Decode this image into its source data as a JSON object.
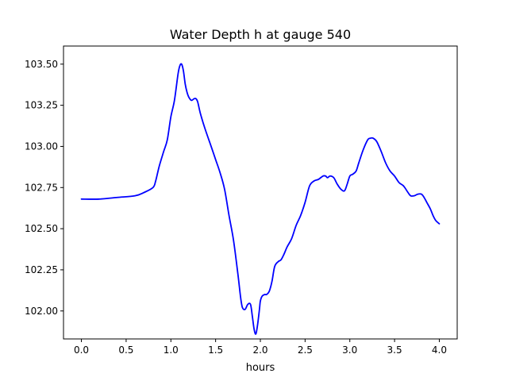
{
  "chart_data": {
    "type": "line",
    "title": "Water Depth h at gauge 540",
    "xlabel": "hours",
    "ylabel": "",
    "xlim": [
      -0.2,
      4.2
    ],
    "ylim": [
      101.83,
      103.61
    ],
    "xticks": [
      0.0,
      0.5,
      1.0,
      1.5,
      2.0,
      2.5,
      3.0,
      3.5,
      4.0
    ],
    "xtick_labels": [
      "0.0",
      "0.5",
      "1.0",
      "1.5",
      "2.0",
      "2.5",
      "3.0",
      "3.5",
      "4.0"
    ],
    "yticks": [
      102.0,
      102.25,
      102.5,
      102.75,
      103.0,
      103.25,
      103.5
    ],
    "ytick_labels": [
      "102.00",
      "102.25",
      "102.50",
      "102.75",
      "103.00",
      "103.25",
      "103.50"
    ],
    "grid": false,
    "series": [
      {
        "color": "#0000ff",
        "x": [
          0.0,
          0.2,
          0.4,
          0.6,
          0.7,
          0.8,
          0.83,
          0.87,
          0.92,
          0.96,
          1.0,
          1.04,
          1.08,
          1.1,
          1.12,
          1.14,
          1.16,
          1.18,
          1.2,
          1.23,
          1.26,
          1.28,
          1.3,
          1.33,
          1.38,
          1.45,
          1.5,
          1.55,
          1.6,
          1.65,
          1.7,
          1.75,
          1.78,
          1.8,
          1.83,
          1.86,
          1.89,
          1.91,
          1.93,
          1.95,
          1.97,
          1.99,
          2.0,
          2.02,
          2.05,
          2.07,
          2.1,
          2.13,
          2.16,
          2.2,
          2.23,
          2.26,
          2.3,
          2.35,
          2.4,
          2.45,
          2.5,
          2.55,
          2.6,
          2.65,
          2.7,
          2.73,
          2.75,
          2.78,
          2.82,
          2.86,
          2.9,
          2.94,
          2.97,
          3.0,
          3.03,
          3.07,
          3.1,
          3.15,
          3.2,
          3.23,
          3.26,
          3.3,
          3.35,
          3.4,
          3.45,
          3.5,
          3.55,
          3.6,
          3.65,
          3.68,
          3.72,
          3.76,
          3.8,
          3.83,
          3.86,
          3.9,
          3.93,
          3.96,
          4.0
        ],
        "y": [
          102.68,
          102.68,
          102.69,
          102.7,
          102.72,
          102.75,
          102.79,
          102.88,
          102.97,
          103.04,
          103.18,
          103.28,
          103.44,
          103.49,
          103.5,
          103.46,
          103.38,
          103.33,
          103.3,
          103.28,
          103.29,
          103.29,
          103.27,
          103.2,
          103.11,
          103.0,
          102.92,
          102.84,
          102.74,
          102.58,
          102.43,
          102.22,
          102.08,
          102.02,
          102.01,
          102.04,
          102.04,
          101.97,
          101.89,
          101.86,
          101.92,
          102.01,
          102.06,
          102.09,
          102.1,
          102.1,
          102.12,
          102.18,
          102.27,
          102.3,
          102.31,
          102.34,
          102.39,
          102.44,
          102.52,
          102.58,
          102.66,
          102.76,
          102.79,
          102.8,
          102.82,
          102.82,
          102.81,
          102.82,
          102.81,
          102.77,
          102.74,
          102.73,
          102.77,
          102.82,
          102.83,
          102.85,
          102.9,
          102.98,
          103.04,
          103.05,
          103.05,
          103.03,
          102.97,
          102.9,
          102.85,
          102.82,
          102.78,
          102.76,
          102.72,
          102.7,
          102.7,
          102.71,
          102.71,
          102.69,
          102.66,
          102.62,
          102.58,
          102.55,
          102.53
        ]
      }
    ]
  }
}
